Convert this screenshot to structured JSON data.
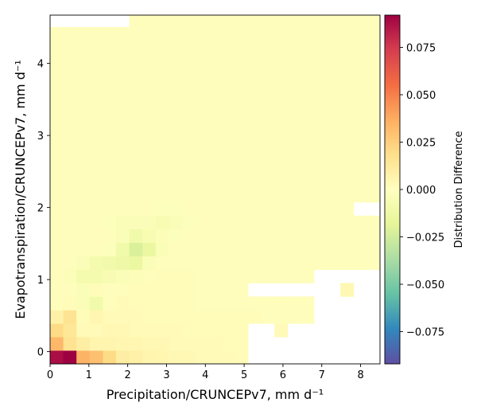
{
  "chart_data": {
    "type": "heatmap",
    "xlabel": "Precipitation/CRUNCEPv7,  mm d⁻¹",
    "ylabel": "Evapotranspiration/CRUNCEPv7,  mm d⁻¹",
    "xlim": [
      0,
      8.5
    ],
    "ylim": [
      -0.17,
      4.67
    ],
    "xticks": [
      0,
      1,
      2,
      3,
      4,
      5,
      6,
      7,
      8
    ],
    "yticks": [
      0,
      1,
      2,
      3,
      4
    ],
    "bin_width_x": 0.34,
    "bin_width_y": 0.187,
    "colorbar": {
      "label": "Distribution Difference",
      "range": [
        -0.092,
        0.092
      ],
      "ticks": [
        0.075,
        0.05,
        0.025,
        0.0,
        -0.025,
        -0.05,
        -0.075
      ],
      "tick_labels": [
        "0.075",
        "0.050",
        "0.025",
        "0.000",
        "−0.025",
        "−0.050",
        "−0.075"
      ],
      "colormap": "Spectral_r"
    },
    "grid": false,
    "rows_from_bottom": [
      [
        0.088,
        0.092,
        0.035,
        0.03,
        0.02,
        0.01,
        0.008,
        0.006,
        0.005,
        0.004,
        0.004,
        0.003,
        0.003,
        0.003,
        0.002,
        null,
        null,
        null,
        null,
        null,
        null,
        null,
        null,
        null,
        null
      ],
      [
        0.033,
        0.016,
        0.01,
        0.006,
        0.006,
        0.005,
        0.005,
        0.004,
        0.004,
        0.003,
        0.003,
        0.003,
        0.003,
        0.002,
        0.002,
        null,
        null,
        null,
        null,
        null,
        null,
        null,
        null,
        null,
        null
      ],
      [
        0.02,
        0.014,
        0.003,
        0.003,
        0.004,
        0.004,
        0.003,
        0.003,
        0.003,
        0.003,
        0.002,
        0.002,
        0.002,
        0.002,
        0.002,
        null,
        null,
        0.003,
        null,
        null,
        null,
        null,
        null,
        null,
        null
      ],
      [
        0.008,
        0.016,
        0.002,
        0.005,
        0.003,
        0.003,
        0.003,
        0.002,
        0.002,
        0.002,
        0.002,
        0.002,
        0.002,
        0.002,
        0.002,
        0.002,
        0.001,
        0.001,
        0.001,
        0.001,
        null,
        null,
        null,
        null,
        null
      ],
      [
        0.001,
        0.002,
        -0.004,
        -0.01,
        0.001,
        0.003,
        0.002,
        0.002,
        0.002,
        0.002,
        0.002,
        0.001,
        0.001,
        0.001,
        0.001,
        0.001,
        0.001,
        0.001,
        0.001,
        0.001,
        null,
        null,
        null,
        null,
        null
      ],
      [
        0.001,
        0.001,
        -0.004,
        0.002,
        0.001,
        0.001,
        0.002,
        0.002,
        0.002,
        0.002,
        0.002,
        0.001,
        0.001,
        0.001,
        0.001,
        null,
        null,
        null,
        null,
        null,
        null,
        null,
        0.004,
        null,
        null
      ],
      [
        0.001,
        -0.003,
        -0.008,
        -0.008,
        -0.006,
        -0.004,
        -0.003,
        0.001,
        0.002,
        0.002,
        0.002,
        0.001,
        0.001,
        0.001,
        0.001,
        0.001,
        0.001,
        0.001,
        0.001,
        0.001,
        null,
        null,
        null,
        null,
        null
      ],
      [
        0.001,
        0.001,
        -0.004,
        -0.008,
        -0.01,
        -0.012,
        -0.014,
        -0.004,
        0.001,
        0.001,
        0.001,
        0.001,
        0.001,
        0.001,
        0.001,
        0.001,
        0.001,
        0.001,
        0.001,
        0.001,
        0.001,
        0.001,
        0.001,
        0.001,
        0.001
      ],
      [
        0.001,
        0.001,
        0.001,
        0.001,
        -0.002,
        -0.01,
        -0.022,
        -0.014,
        -0.004,
        0.001,
        0.001,
        0.001,
        0.001,
        0.001,
        0.001,
        0.001,
        0.001,
        0.001,
        0.001,
        0.001,
        0.001,
        0.001,
        0.001,
        0.001,
        0.001
      ],
      [
        0.001,
        0.001,
        0.001,
        0.001,
        0.001,
        -0.004,
        -0.01,
        -0.006,
        -0.003,
        -0.002,
        0.001,
        0.001,
        0.001,
        0.001,
        0.001,
        0.001,
        0.001,
        0.001,
        0.001,
        0.001,
        0.001,
        0.001,
        0.001,
        0.001,
        0.001
      ],
      [
        0.001,
        0.001,
        0.001,
        0.001,
        -0.002,
        -0.004,
        -0.004,
        -0.004,
        -0.006,
        -0.004,
        -0.002,
        0.001,
        0.001,
        0.001,
        0.001,
        0.001,
        0.001,
        0.001,
        0.001,
        0.001,
        0.001,
        0.001,
        0.001,
        0.001,
        0.001
      ],
      [
        0.001,
        0.001,
        0.001,
        0.001,
        0.001,
        0.001,
        0.001,
        0.001,
        -0.002,
        -0.002,
        0.001,
        0.001,
        0.001,
        0.001,
        0.001,
        0.001,
        0.001,
        0.001,
        0.001,
        0.001,
        0.001,
        0.001,
        0.001,
        null,
        null
      ],
      [
        0.001,
        0.001,
        0.001,
        0.001,
        0.001,
        0.001,
        0.001,
        0.001,
        0.001,
        0.001,
        0.001,
        0.001,
        0.001,
        0.001,
        0.001,
        0.001,
        0.001,
        0.001,
        0.001,
        0.001,
        0.001,
        0.001,
        0.001,
        0.001,
        0.001
      ],
      [
        0.001,
        0.001,
        0.001,
        0.001,
        0.001,
        0.001,
        0.001,
        0.001,
        0.001,
        0.001,
        0.001,
        0.001,
        0.001,
        0.001,
        0.001,
        0.001,
        0.001,
        0.001,
        0.001,
        0.001,
        0.001,
        0.001,
        0.001,
        0.001,
        0.001
      ],
      [
        0.001,
        0.001,
        0.001,
        0.001,
        0.001,
        0.001,
        0.001,
        0.001,
        0.001,
        0.001,
        0.001,
        0.001,
        0.001,
        0.001,
        0.001,
        0.001,
        0.001,
        0.001,
        0.001,
        0.001,
        0.001,
        0.001,
        0.001,
        0.001,
        0.001
      ],
      [
        0.001,
        0.001,
        0.001,
        0.001,
        0.001,
        0.001,
        0.001,
        0.001,
        0.001,
        0.001,
        0.001,
        0.001,
        0.001,
        0.001,
        0.001,
        0.001,
        0.001,
        0.001,
        0.001,
        0.001,
        0.001,
        0.001,
        0.001,
        0.001,
        0.001
      ],
      [
        0.001,
        0.001,
        0.001,
        0.001,
        0.001,
        0.001,
        0.001,
        0.001,
        0.001,
        0.001,
        0.001,
        0.001,
        0.001,
        0.001,
        0.001,
        0.001,
        0.001,
        0.001,
        0.001,
        0.001,
        0.001,
        0.001,
        0.001,
        0.001,
        0.001
      ],
      [
        0.001,
        0.001,
        0.001,
        0.001,
        0.001,
        0.001,
        0.001,
        0.001,
        0.001,
        0.001,
        0.001,
        0.001,
        0.001,
        0.001,
        0.001,
        0.001,
        0.001,
        0.001,
        0.001,
        0.001,
        0.001,
        0.001,
        0.001,
        0.001,
        0.001
      ],
      [
        0.001,
        0.001,
        0.001,
        0.001,
        0.001,
        0.001,
        0.001,
        0.001,
        0.001,
        0.001,
        0.001,
        0.001,
        0.001,
        0.001,
        0.001,
        0.001,
        0.001,
        0.001,
        0.001,
        0.001,
        0.001,
        0.001,
        0.001,
        0.001,
        0.001
      ],
      [
        0.001,
        0.001,
        0.001,
        0.001,
        0.001,
        0.001,
        0.001,
        0.001,
        0.001,
        0.001,
        0.001,
        0.001,
        0.001,
        0.001,
        0.001,
        0.001,
        0.001,
        0.001,
        0.001,
        0.001,
        0.001,
        0.001,
        0.001,
        0.001,
        0.001
      ],
      [
        0.001,
        0.001,
        0.001,
        0.001,
        0.001,
        0.001,
        0.001,
        0.001,
        0.001,
        0.001,
        0.001,
        0.001,
        0.001,
        0.001,
        0.001,
        0.001,
        0.001,
        0.001,
        0.001,
        0.001,
        0.001,
        0.001,
        0.001,
        0.001,
        0.001
      ],
      [
        0.001,
        0.001,
        0.001,
        0.001,
        0.001,
        0.001,
        0.001,
        0.001,
        0.001,
        0.001,
        0.001,
        0.001,
        0.001,
        0.001,
        0.001,
        0.001,
        0.001,
        0.001,
        0.001,
        0.001,
        0.001,
        0.001,
        0.001,
        0.001,
        0.001
      ],
      [
        0.001,
        0.001,
        0.001,
        0.001,
        0.001,
        0.001,
        0.001,
        0.001,
        0.001,
        0.001,
        0.001,
        0.001,
        0.001,
        0.001,
        0.001,
        0.001,
        0.001,
        0.001,
        0.001,
        0.001,
        0.001,
        0.001,
        0.001,
        0.001,
        0.001
      ],
      [
        0.001,
        0.001,
        0.001,
        0.001,
        0.001,
        0.001,
        0.001,
        0.001,
        0.001,
        0.001,
        0.001,
        0.001,
        0.001,
        0.001,
        0.001,
        0.001,
        0.001,
        0.001,
        0.001,
        0.001,
        0.001,
        0.001,
        0.001,
        0.001,
        0.001
      ],
      [
        0.001,
        0.001,
        0.001,
        0.001,
        0.001,
        0.001,
        0.001,
        0.001,
        0.001,
        0.001,
        0.001,
        0.001,
        0.001,
        0.001,
        0.001,
        0.001,
        0.001,
        0.001,
        0.001,
        0.001,
        0.001,
        0.001,
        0.001,
        0.001,
        0.001
      ],
      [
        null,
        null,
        null,
        null,
        null,
        null,
        0.001,
        0.001,
        0.001,
        0.001,
        0.001,
        0.001,
        0.001,
        0.001,
        0.001,
        0.001,
        0.001,
        0.001,
        0.001,
        0.001,
        0.001,
        0.001,
        0.001,
        0.001,
        0.001
      ]
    ]
  }
}
